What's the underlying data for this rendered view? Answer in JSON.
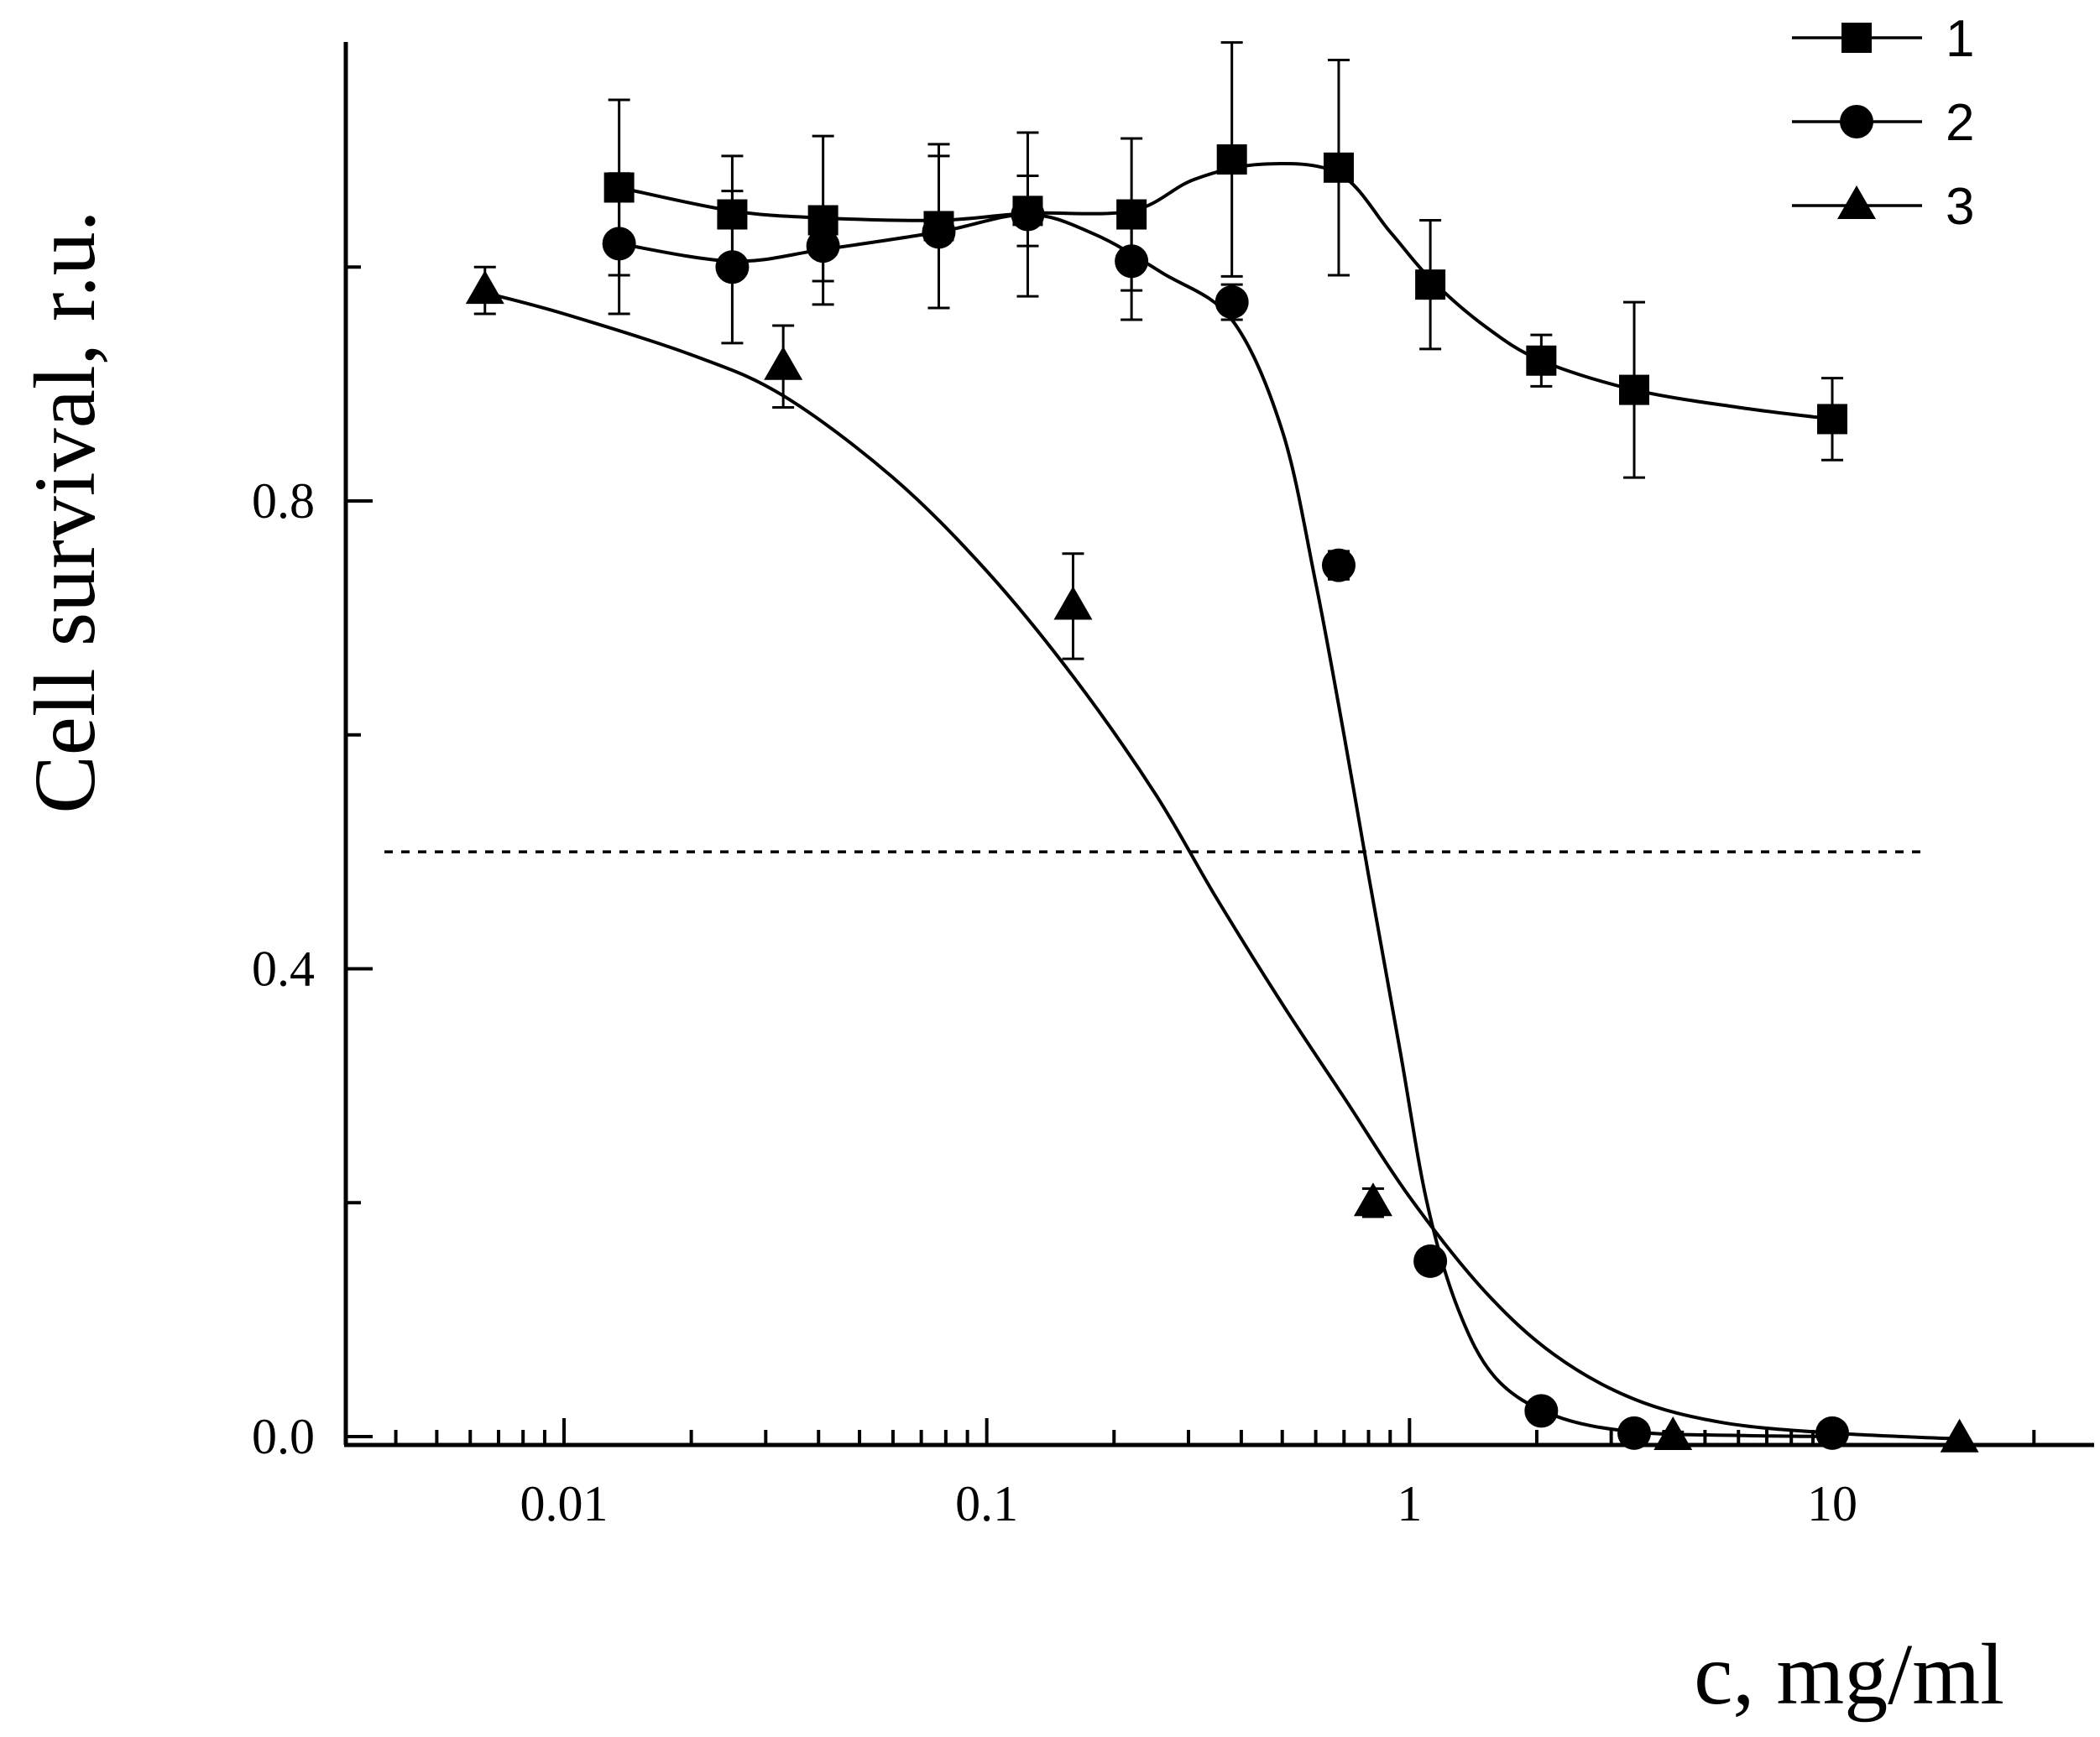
{
  "chart_data": {
    "type": "scatter",
    "xscale": "log",
    "xlabel": "c, mg/ml",
    "ylabel": "Cell survival, r.u.",
    "xlim": [
      0.0035,
      35
    ],
    "ylim": [
      -0.01,
      1.2
    ],
    "x_ticks": [
      {
        "value": 0.01,
        "label": "0.01"
      },
      {
        "value": 0.1,
        "label": "0.1"
      },
      {
        "value": 1,
        "label": "1"
      },
      {
        "value": 10,
        "label": "10"
      }
    ],
    "y_ticks": [
      {
        "value": 0.0,
        "label": "0.0"
      },
      {
        "value": 0.4,
        "label": "0.4"
      },
      {
        "value": 0.8,
        "label": "0.8"
      }
    ],
    "reference_line": {
      "y": 0.5,
      "style": "dotted"
    },
    "legend": {
      "position": "top-right"
    },
    "series": [
      {
        "name": "1",
        "marker": "square",
        "points": [
          {
            "x": 0.0135,
            "y": 1.068,
            "err": 0.075
          },
          {
            "x": 0.025,
            "y": 1.045,
            "err": 0.05
          },
          {
            "x": 0.041,
            "y": 1.04,
            "err": 0.072
          },
          {
            "x": 0.077,
            "y": 1.035,
            "err": 0.07
          },
          {
            "x": 0.125,
            "y": 1.048,
            "err": 0.03
          },
          {
            "x": 0.22,
            "y": 1.045,
            "err": 0.065
          },
          {
            "x": 0.38,
            "y": 1.092,
            "err": 0.1
          },
          {
            "x": 0.68,
            "y": 1.085,
            "err": 0.092
          },
          {
            "x": 1.12,
            "y": 0.985,
            "err": 0.055
          },
          {
            "x": 2.05,
            "y": 0.92,
            "err": 0.022
          },
          {
            "x": 3.4,
            "y": 0.895,
            "err": 0.075
          },
          {
            "x": 10,
            "y": 0.87,
            "err": 0.035
          }
        ],
        "fit": [
          [
            0.0135,
            1.068
          ],
          [
            0.025,
            1.048
          ],
          [
            0.041,
            1.042
          ],
          [
            0.077,
            1.04
          ],
          [
            0.125,
            1.046
          ],
          [
            0.22,
            1.048
          ],
          [
            0.31,
            1.075
          ],
          [
            0.45,
            1.088
          ],
          [
            0.68,
            1.08
          ],
          [
            0.9,
            1.03
          ],
          [
            1.12,
            0.99
          ],
          [
            1.5,
            0.95
          ],
          [
            2.05,
            0.92
          ],
          [
            3.4,
            0.895
          ],
          [
            6,
            0.88
          ],
          [
            10,
            0.87
          ]
        ]
      },
      {
        "name": "2",
        "marker": "circle",
        "points": [
          {
            "x": 0.0135,
            "y": 1.02,
            "err": 0.06
          },
          {
            "x": 0.025,
            "y": 1.0,
            "err": 0.065
          },
          {
            "x": 0.041,
            "y": 1.018,
            "err": 0.03
          },
          {
            "x": 0.077,
            "y": 1.03,
            "err": 0.065
          },
          {
            "x": 0.125,
            "y": 1.045,
            "err": 0.07
          },
          {
            "x": 0.22,
            "y": 1.005,
            "err": 0.05
          },
          {
            "x": 0.38,
            "y": 0.97,
            "err": 0.015
          },
          {
            "x": 0.68,
            "y": 0.745,
            "err": 0.012
          },
          {
            "x": 1.12,
            "y": 0.15,
            "err": 0.005
          },
          {
            "x": 2.05,
            "y": 0.022,
            "err": 0.0
          },
          {
            "x": 3.4,
            "y": 0.003,
            "err": 0.0
          },
          {
            "x": 10,
            "y": 0.003,
            "err": 0.0
          }
        ],
        "fit": [
          [
            0.0135,
            1.02
          ],
          [
            0.025,
            1.005
          ],
          [
            0.041,
            1.015
          ],
          [
            0.077,
            1.03
          ],
          [
            0.125,
            1.045
          ],
          [
            0.18,
            1.028
          ],
          [
            0.26,
            0.995
          ],
          [
            0.38,
            0.955
          ],
          [
            0.5,
            0.86
          ],
          [
            0.6,
            0.73
          ],
          [
            0.7,
            0.6
          ],
          [
            0.8,
            0.48
          ],
          [
            0.95,
            0.33
          ],
          [
            1.1,
            0.2
          ],
          [
            1.3,
            0.11
          ],
          [
            1.6,
            0.05
          ],
          [
            2.2,
            0.018
          ],
          [
            3.4,
            0.004
          ],
          [
            6,
            0.001
          ],
          [
            10,
            0.0
          ]
        ]
      },
      {
        "name": "3",
        "marker": "triangle",
        "points": [
          {
            "x": 0.0065,
            "y": 0.98,
            "err": 0.02
          },
          {
            "x": 0.033,
            "y": 0.915,
            "err": 0.035
          },
          {
            "x": 0.16,
            "y": 0.71,
            "err": 0.045
          },
          {
            "x": 0.82,
            "y": 0.2,
            "err": 0.012
          },
          {
            "x": 4.2,
            "y": 0.0,
            "err": 0.004
          },
          {
            "x": 20,
            "y": -0.002,
            "err": 0.0
          }
        ],
        "fit": [
          [
            0.0065,
            0.978
          ],
          [
            0.01,
            0.96
          ],
          [
            0.02,
            0.925
          ],
          [
            0.033,
            0.89
          ],
          [
            0.06,
            0.82
          ],
          [
            0.1,
            0.74
          ],
          [
            0.16,
            0.65
          ],
          [
            0.25,
            0.55
          ],
          [
            0.35,
            0.46
          ],
          [
            0.5,
            0.37
          ],
          [
            0.7,
            0.29
          ],
          [
            1.0,
            0.205
          ],
          [
            1.5,
            0.125
          ],
          [
            2.2,
            0.07
          ],
          [
            3.4,
            0.032
          ],
          [
            5.5,
            0.012
          ],
          [
            10,
            0.003
          ],
          [
            20,
            -0.002
          ]
        ]
      }
    ]
  }
}
